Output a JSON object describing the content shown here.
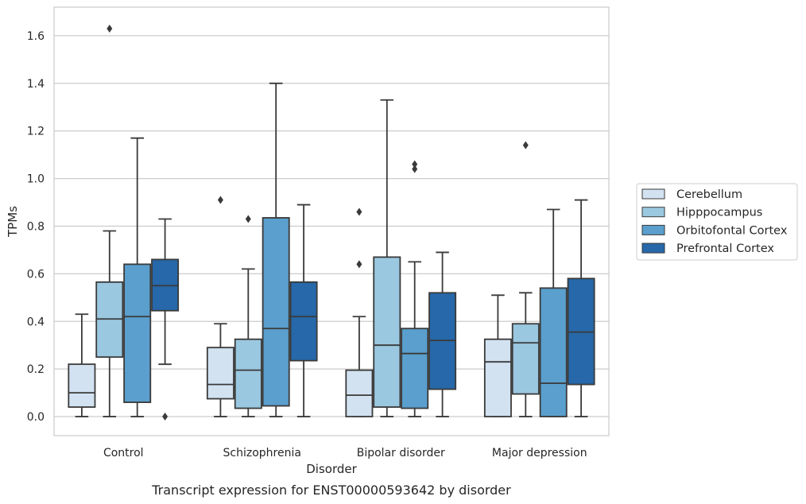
{
  "chart_data": {
    "type": "box",
    "caption": "Transcript expression for ENST00000593642 by disorder",
    "xlabel": "Disorder",
    "ylabel": "TPMs",
    "ylim": [
      -0.08,
      1.72
    ],
    "yticks": [
      0.0,
      0.2,
      0.4,
      0.6,
      0.8,
      1.0,
      1.2,
      1.4,
      1.6
    ],
    "ytick_labels": [
      "0.0",
      "0.2",
      "0.4",
      "0.6",
      "0.8",
      "1.0",
      "1.2",
      "1.4",
      "1.6"
    ],
    "grid": true,
    "legend_position": "right",
    "categories": [
      "Control",
      "Schizophrenia",
      "Bipolar disorder",
      "Major depression"
    ],
    "series": [
      {
        "name": "Cerebellum",
        "color": "#d2e2f1",
        "boxes": [
          {
            "whislo": 0.0,
            "q1": 0.04,
            "med": 0.1,
            "q3": 0.22,
            "whishi": 0.43,
            "fliers": []
          },
          {
            "whislo": 0.0,
            "q1": 0.075,
            "med": 0.135,
            "q3": 0.29,
            "whishi": 0.39,
            "fliers": [
              0.91
            ]
          },
          {
            "whislo": 0.0,
            "q1": 0.0,
            "med": 0.09,
            "q3": 0.195,
            "whishi": 0.42,
            "fliers": [
              0.64,
              0.86
            ]
          },
          {
            "whislo": 0.0,
            "q1": 0.0,
            "med": 0.23,
            "q3": 0.325,
            "whishi": 0.51,
            "fliers": []
          }
        ]
      },
      {
        "name": "Hipppocampus",
        "color": "#9ac8e0",
        "boxes": [
          {
            "whislo": 0.0,
            "q1": 0.25,
            "med": 0.41,
            "q3": 0.565,
            "whishi": 0.78,
            "fliers": [
              1.63
            ]
          },
          {
            "whislo": 0.0,
            "q1": 0.035,
            "med": 0.195,
            "q3": 0.325,
            "whishi": 0.62,
            "fliers": [
              0.83
            ]
          },
          {
            "whislo": 0.0,
            "q1": 0.04,
            "med": 0.3,
            "q3": 0.67,
            "whishi": 1.33,
            "fliers": []
          },
          {
            "whislo": 0.0,
            "q1": 0.095,
            "med": 0.31,
            "q3": 0.39,
            "whishi": 0.52,
            "fliers": [
              1.14
            ]
          }
        ]
      },
      {
        "name": "Orbitofontal Cortex",
        "color": "#5a9fcd",
        "boxes": [
          {
            "whislo": 0.0,
            "q1": 0.06,
            "med": 0.42,
            "q3": 0.64,
            "whishi": 1.17,
            "fliers": []
          },
          {
            "whislo": 0.0,
            "q1": 0.045,
            "med": 0.37,
            "q3": 0.835,
            "whishi": 1.4,
            "fliers": []
          },
          {
            "whislo": 0.0,
            "q1": 0.035,
            "med": 0.265,
            "q3": 0.37,
            "whishi": 0.65,
            "fliers": [
              1.04,
              1.06
            ]
          },
          {
            "whislo": 0.0,
            "q1": 0.0,
            "med": 0.14,
            "q3": 0.54,
            "whishi": 0.87,
            "fliers": []
          }
        ]
      },
      {
        "name": "Prefrontal Cortex",
        "color": "#2668a9",
        "boxes": [
          {
            "whislo": 0.22,
            "q1": 0.445,
            "med": 0.55,
            "q3": 0.66,
            "whishi": 0.83,
            "fliers": [
              0.0
            ]
          },
          {
            "whislo": 0.0,
            "q1": 0.235,
            "med": 0.42,
            "q3": 0.565,
            "whishi": 0.89,
            "fliers": []
          },
          {
            "whislo": 0.0,
            "q1": 0.115,
            "med": 0.32,
            "q3": 0.52,
            "whishi": 0.69,
            "fliers": []
          },
          {
            "whislo": 0.0,
            "q1": 0.135,
            "med": 0.355,
            "q3": 0.58,
            "whishi": 0.91,
            "fliers": []
          }
        ]
      }
    ]
  }
}
